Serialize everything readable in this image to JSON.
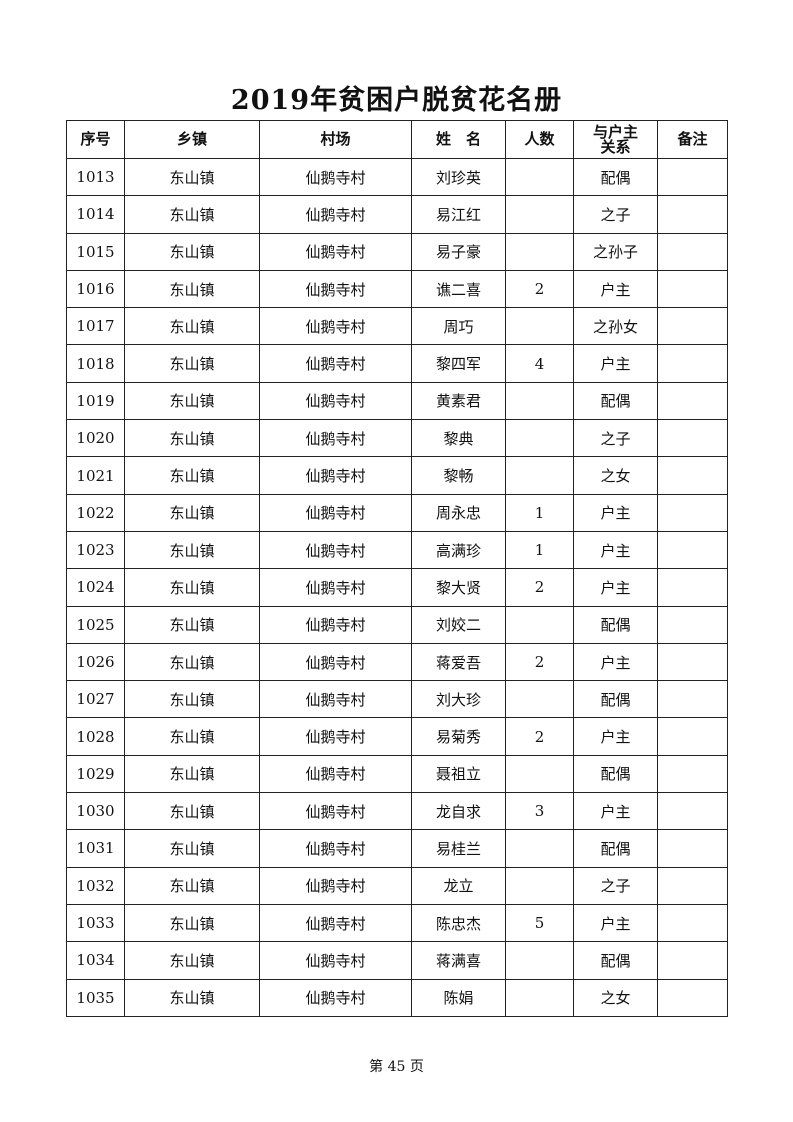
{
  "title": "2019年贫困户脱贫花名册",
  "columns": [
    "序号",
    "乡镇",
    "村场",
    "姓　名",
    "人数",
    "与户主关系",
    "备注"
  ],
  "rows": [
    [
      "1013",
      "东山镇",
      "仙鹅寺村",
      "刘珍英",
      "",
      "配偶",
      ""
    ],
    [
      "1014",
      "东山镇",
      "仙鹅寺村",
      "易江红",
      "",
      "之子",
      ""
    ],
    [
      "1015",
      "东山镇",
      "仙鹅寺村",
      "易子豪",
      "",
      "之孙子",
      ""
    ],
    [
      "1016",
      "东山镇",
      "仙鹅寺村",
      "谯二喜",
      "2",
      "户主",
      ""
    ],
    [
      "1017",
      "东山镇",
      "仙鹅寺村",
      "周巧",
      "",
      "之孙女",
      ""
    ],
    [
      "1018",
      "东山镇",
      "仙鹅寺村",
      "黎四军",
      "4",
      "户主",
      ""
    ],
    [
      "1019",
      "东山镇",
      "仙鹅寺村",
      "黄素君",
      "",
      "配偶",
      ""
    ],
    [
      "1020",
      "东山镇",
      "仙鹅寺村",
      "黎典",
      "",
      "之子",
      ""
    ],
    [
      "1021",
      "东山镇",
      "仙鹅寺村",
      "黎畅",
      "",
      "之女",
      ""
    ],
    [
      "1022",
      "东山镇",
      "仙鹅寺村",
      "周永忠",
      "1",
      "户主",
      ""
    ],
    [
      "1023",
      "东山镇",
      "仙鹅寺村",
      "高满珍",
      "1",
      "户主",
      ""
    ],
    [
      "1024",
      "东山镇",
      "仙鹅寺村",
      "黎大贤",
      "2",
      "户主",
      ""
    ],
    [
      "1025",
      "东山镇",
      "仙鹅寺村",
      "刘姣二",
      "",
      "配偶",
      ""
    ],
    [
      "1026",
      "东山镇",
      "仙鹅寺村",
      "蒋爱吾",
      "2",
      "户主",
      ""
    ],
    [
      "1027",
      "东山镇",
      "仙鹅寺村",
      "刘大珍",
      "",
      "配偶",
      ""
    ],
    [
      "1028",
      "东山镇",
      "仙鹅寺村",
      "易菊秀",
      "2",
      "户主",
      ""
    ],
    [
      "1029",
      "东山镇",
      "仙鹅寺村",
      "聂祖立",
      "",
      "配偶",
      ""
    ],
    [
      "1030",
      "东山镇",
      "仙鹅寺村",
      "龙自求",
      "3",
      "户主",
      ""
    ],
    [
      "1031",
      "东山镇",
      "仙鹅寺村",
      "易桂兰",
      "",
      "配偶",
      ""
    ],
    [
      "1032",
      "东山镇",
      "仙鹅寺村",
      "龙立",
      "",
      "之子",
      ""
    ],
    [
      "1033",
      "东山镇",
      "仙鹅寺村",
      "陈忠杰",
      "5",
      "户主",
      ""
    ],
    [
      "1034",
      "东山镇",
      "仙鹅寺村",
      "蒋满喜",
      "",
      "配偶",
      ""
    ],
    [
      "1035",
      "东山镇",
      "仙鹅寺村",
      "陈娟",
      "",
      "之女",
      ""
    ]
  ],
  "footer": "第 45 页"
}
